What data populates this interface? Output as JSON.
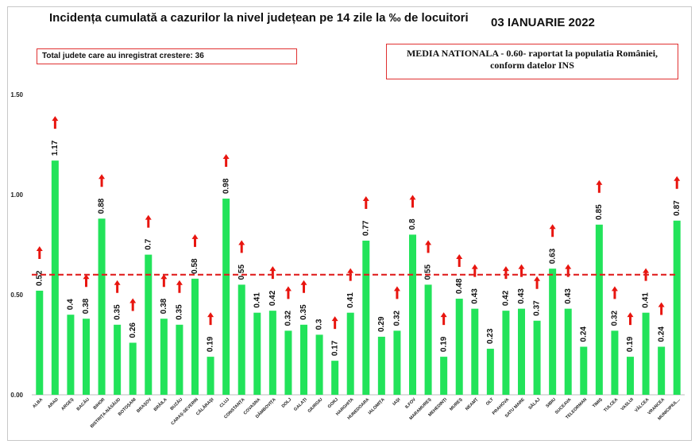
{
  "header": {
    "title": "Incidența cumulată a cazurilor la nivel județean pe 14 zile la ‰ de locuitori",
    "date": "03 IANUARIE 2022"
  },
  "notes": {
    "increase_count": "Total judete care au inregistrat crestere: 36",
    "national_line1": "MEDIA NATIONALA - 0.60-  raportat la populatia României,",
    "national_line2": "conform datelor INS"
  },
  "colors": {
    "bar": "#22e35a",
    "arrow": "#e8150f",
    "reference": "#e02020"
  },
  "chart_data": {
    "type": "bar",
    "title": "Incidența cumulată a cazurilor la nivel județean pe 14 zile la ‰ de locuitori",
    "xlabel": "",
    "ylabel": "",
    "ylim": [
      0,
      1.5
    ],
    "yticks": [
      "0.00",
      "0.50",
      "1.00",
      "1.50"
    ],
    "grid": false,
    "reference_line": 0.6,
    "categories": [
      "ALBA",
      "ARAD",
      "ARGEȘ",
      "BACĂU",
      "BIHOR",
      "BISTRIȚA-NĂSĂUD",
      "BOTOȘANI",
      "BRAȘOV",
      "BRĂILA",
      "BUZĂU",
      "CARAȘ-SEVERIN",
      "CĂLĂRAȘI",
      "CLUJ",
      "CONSTANȚA",
      "COVASNA",
      "DÂMBOVIȚA",
      "DOLJ",
      "GALAȚI",
      "GIURGIU",
      "GORJ",
      "HARGHITA",
      "HUNEDOARA",
      "IALOMIȚA",
      "IAȘI",
      "ILFOV",
      "MARAMUREȘ",
      "MEHEDINȚI",
      "MUREȘ",
      "NEAMȚ",
      "OLT",
      "PRAHOVA",
      "SATU MARE",
      "SĂLAJ",
      "SIBIU",
      "SUCEAVA",
      "TELEORMAN",
      "TIMIȘ",
      "TULCEA",
      "VASLUI",
      "VÂLCEA",
      "VRANCEA",
      "MUNICIPIUL..."
    ],
    "values": [
      0.52,
      1.17,
      0.4,
      0.38,
      0.88,
      0.35,
      0.26,
      0.7,
      0.38,
      0.35,
      0.58,
      0.19,
      0.98,
      0.55,
      0.41,
      0.42,
      0.32,
      0.35,
      0.3,
      0.17,
      0.41,
      0.77,
      0.29,
      0.32,
      0.8,
      0.55,
      0.19,
      0.48,
      0.43,
      0.23,
      0.42,
      0.43,
      0.37,
      0.63,
      0.43,
      0.24,
      0.85,
      0.32,
      0.19,
      0.41,
      0.24,
      0.87
    ],
    "labels": [
      "0.52",
      "1.17",
      "0.4",
      "0.38",
      "0.88",
      "0.35",
      "0.26",
      "0.7",
      "0.38",
      "0.35",
      "0.58",
      "0.19",
      "0.98",
      "0.55",
      "0.41",
      "0.42",
      "0.32",
      "0.35",
      "0.3",
      "0.17",
      "0.41",
      "0.77",
      "0.29",
      "0.32",
      "0.8",
      "0.55",
      "0.19",
      "0.48",
      "0.43",
      "0.23",
      "0.42",
      "0.43",
      "0.37",
      "0.63",
      "0.43",
      "0.24",
      "0.85",
      "0.32",
      "0.19",
      "0.41",
      "0.24",
      "0.87"
    ],
    "increase": [
      true,
      true,
      false,
      true,
      true,
      true,
      true,
      true,
      true,
      true,
      true,
      true,
      true,
      true,
      false,
      true,
      true,
      true,
      false,
      true,
      true,
      true,
      false,
      true,
      true,
      true,
      true,
      true,
      true,
      false,
      true,
      true,
      true,
      true,
      true,
      false,
      true,
      true,
      true,
      true,
      true,
      true
    ]
  }
}
